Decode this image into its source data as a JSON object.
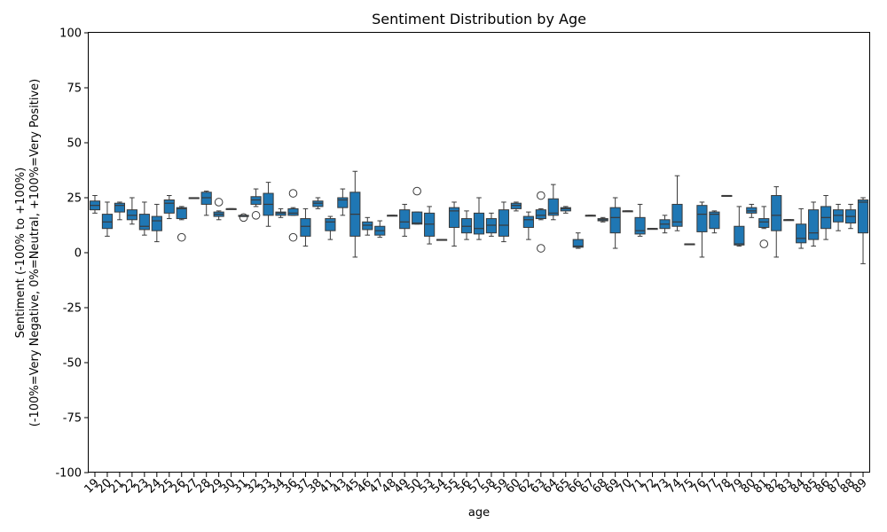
{
  "colors": {
    "box_fill": "#1f77b4",
    "line": "#3a3a3a",
    "axis": "#000000",
    "background": "#ffffff"
  },
  "chart_data": {
    "type": "box",
    "title": "Sentiment Distribution by Age",
    "xlabel": "age",
    "ylabel_line1": "Sentiment (-100% to +100%)",
    "ylabel_line2": "(-100%=Very Negative, 0%=Neutral, +100%=Very Positive)",
    "ylim": [
      -100,
      100
    ],
    "yticks": [
      -100,
      -75,
      -50,
      -25,
      0,
      25,
      50,
      75,
      100
    ],
    "grid": false,
    "categories": [
      "19",
      "20",
      "21",
      "22",
      "23",
      "24",
      "25",
      "26",
      "27",
      "28",
      "29",
      "30",
      "31",
      "32",
      "33",
      "34",
      "36",
      "37",
      "38",
      "41",
      "43",
      "45",
      "46",
      "47",
      "48",
      "49",
      "50",
      "53",
      "54",
      "55",
      "56",
      "57",
      "58",
      "59",
      "60",
      "62",
      "63",
      "64",
      "65",
      "66",
      "67",
      "68",
      "69",
      "70",
      "71",
      "72",
      "73",
      "74",
      "75",
      "76",
      "77",
      "78",
      "79",
      "80",
      "81",
      "82",
      "83",
      "84",
      "85",
      "86",
      "87",
      "88",
      "89"
    ],
    "boxes": [
      {
        "wlo": 18,
        "q1": 19.5,
        "med": 21.5,
        "q3": 23.5,
        "whi": 26,
        "out": []
      },
      {
        "wlo": 7.5,
        "q1": 11,
        "med": 14,
        "q3": 17.5,
        "whi": 23,
        "out": []
      },
      {
        "wlo": 15,
        "q1": 18.5,
        "med": 21.5,
        "q3": 22.5,
        "whi": 23,
        "out": []
      },
      {
        "wlo": 13,
        "q1": 15,
        "med": 17,
        "q3": 19.5,
        "whi": 25,
        "out": []
      },
      {
        "wlo": 8,
        "q1": 10.5,
        "med": 12,
        "q3": 17.5,
        "whi": 23,
        "out": []
      },
      {
        "wlo": 5,
        "q1": 10,
        "med": 14.5,
        "q3": 16.5,
        "whi": 22,
        "out": []
      },
      {
        "wlo": 15.5,
        "q1": 18,
        "med": 22.5,
        "q3": 24,
        "whi": 26,
        "out": []
      },
      {
        "wlo": 15,
        "q1": 15.5,
        "med": 20,
        "q3": 20.5,
        "whi": 21,
        "out": [
          7
        ]
      },
      {
        "wlo": 25,
        "q1": 25,
        "med": 25,
        "q3": 25,
        "whi": 25,
        "out": []
      },
      {
        "wlo": 17,
        "q1": 22,
        "med": 25,
        "q3": 27.5,
        "whi": 28,
        "out": []
      },
      {
        "wlo": 15,
        "q1": 16.5,
        "med": 17.5,
        "q3": 18.5,
        "whi": 19,
        "out": [
          23
        ]
      },
      {
        "wlo": 20,
        "q1": 20,
        "med": 20,
        "q3": 20,
        "whi": 20,
        "out": []
      },
      {
        "wlo": 16.5,
        "q1": 16.5,
        "med": 16.5,
        "q3": 17,
        "whi": 17,
        "out": [
          16
        ]
      },
      {
        "wlo": 21,
        "q1": 22,
        "med": 24,
        "q3": 25.5,
        "whi": 29,
        "out": [
          17
        ]
      },
      {
        "wlo": 12,
        "q1": 17,
        "med": 22,
        "q3": 27,
        "whi": 32,
        "out": []
      },
      {
        "wlo": 16,
        "q1": 17,
        "med": 18,
        "q3": 18.5,
        "whi": 20,
        "out": []
      },
      {
        "wlo": 17,
        "q1": 17,
        "med": 18,
        "q3": 20,
        "whi": 20.5,
        "out": [
          27,
          7
        ]
      },
      {
        "wlo": 3,
        "q1": 7.5,
        "med": 12,
        "q3": 15.5,
        "whi": 20,
        "out": []
      },
      {
        "wlo": 20,
        "q1": 21,
        "med": 22.5,
        "q3": 23.5,
        "whi": 25,
        "out": []
      },
      {
        "wlo": 6,
        "q1": 10,
        "med": 14,
        "q3": 15.5,
        "whi": 16.5,
        "out": []
      },
      {
        "wlo": 17,
        "q1": 20.5,
        "med": 24,
        "q3": 25,
        "whi": 29,
        "out": []
      },
      {
        "wlo": -2,
        "q1": 7.5,
        "med": 17.5,
        "q3": 27.5,
        "whi": 37,
        "out": []
      },
      {
        "wlo": 8,
        "q1": 10.5,
        "med": 12.5,
        "q3": 14,
        "whi": 16,
        "out": []
      },
      {
        "wlo": 7,
        "q1": 8,
        "med": 10,
        "q3": 12,
        "whi": 14.5,
        "out": []
      },
      {
        "wlo": 17,
        "q1": 17,
        "med": 17,
        "q3": 17,
        "whi": 17,
        "out": []
      },
      {
        "wlo": 7.5,
        "q1": 11,
        "med": 14,
        "q3": 19.5,
        "whi": 22,
        "out": []
      },
      {
        "wlo": 13,
        "q1": 13,
        "med": 13.5,
        "q3": 18.5,
        "whi": 18.5,
        "out": [
          28
        ]
      },
      {
        "wlo": 4,
        "q1": 7.5,
        "med": 13,
        "q3": 18,
        "whi": 21,
        "out": []
      },
      {
        "wlo": 6,
        "q1": 6,
        "med": 6,
        "q3": 6,
        "whi": 6,
        "out": []
      },
      {
        "wlo": 3,
        "q1": 11.5,
        "med": 19,
        "q3": 20.5,
        "whi": 23,
        "out": []
      },
      {
        "wlo": 6,
        "q1": 9,
        "med": 12,
        "q3": 15.5,
        "whi": 19,
        "out": []
      },
      {
        "wlo": 6,
        "q1": 8.5,
        "med": 11,
        "q3": 18,
        "whi": 25,
        "out": []
      },
      {
        "wlo": 7.5,
        "q1": 9,
        "med": 12.5,
        "q3": 15.5,
        "whi": 18,
        "out": []
      },
      {
        "wlo": 5,
        "q1": 7.5,
        "med": 12.5,
        "q3": 19.5,
        "whi": 23,
        "out": []
      },
      {
        "wlo": 19,
        "q1": 20,
        "med": 21.5,
        "q3": 22.5,
        "whi": 23,
        "out": []
      },
      {
        "wlo": 6,
        "q1": 11.5,
        "med": 15,
        "q3": 16.5,
        "whi": 18.5,
        "out": []
      },
      {
        "wlo": 15,
        "q1": 15.5,
        "med": 17,
        "q3": 19.5,
        "whi": 20,
        "out": [
          26,
          2
        ]
      },
      {
        "wlo": 15,
        "q1": 17,
        "med": 18,
        "q3": 24.5,
        "whi": 31,
        "out": []
      },
      {
        "wlo": 18,
        "q1": 19,
        "med": 20,
        "q3": 20.5,
        "whi": 21,
        "out": []
      },
      {
        "wlo": 2,
        "q1": 2.5,
        "med": 3,
        "q3": 6,
        "whi": 9,
        "out": []
      },
      {
        "wlo": 17,
        "q1": 17,
        "med": 17,
        "q3": 17,
        "whi": 17,
        "out": []
      },
      {
        "wlo": 14,
        "q1": 14.5,
        "med": 15,
        "q3": 15.5,
        "whi": 16,
        "out": []
      },
      {
        "wlo": 2,
        "q1": 9,
        "med": 16,
        "q3": 20.5,
        "whi": 25,
        "out": []
      },
      {
        "wlo": 19,
        "q1": 19,
        "med": 19,
        "q3": 19,
        "whi": 19,
        "out": []
      },
      {
        "wlo": 7.5,
        "q1": 8.5,
        "med": 10,
        "q3": 16,
        "whi": 22,
        "out": []
      },
      {
        "wlo": 11,
        "q1": 11,
        "med": 11,
        "q3": 11,
        "whi": 11,
        "out": []
      },
      {
        "wlo": 9,
        "q1": 11,
        "med": 13,
        "q3": 15,
        "whi": 17,
        "out": []
      },
      {
        "wlo": 10,
        "q1": 12,
        "med": 14,
        "q3": 22,
        "whi": 35,
        "out": []
      },
      {
        "wlo": 4,
        "q1": 4,
        "med": 4,
        "q3": 4,
        "whi": 4,
        "out": []
      },
      {
        "wlo": -2,
        "q1": 9.5,
        "med": 17.5,
        "q3": 21.5,
        "whi": 23,
        "out": []
      },
      {
        "wlo": 9,
        "q1": 11,
        "med": 17.5,
        "q3": 18.5,
        "whi": 19,
        "out": []
      },
      {
        "wlo": 26,
        "q1": 26,
        "med": 26,
        "q3": 26,
        "whi": 26,
        "out": []
      },
      {
        "wlo": 3,
        "q1": 3.5,
        "med": 4,
        "q3": 12,
        "whi": 21,
        "out": []
      },
      {
        "wlo": 16,
        "q1": 18,
        "med": 19,
        "q3": 20.5,
        "whi": 22,
        "out": []
      },
      {
        "wlo": 11,
        "q1": 11.5,
        "med": 14,
        "q3": 15.5,
        "whi": 21,
        "out": [
          4
        ]
      },
      {
        "wlo": -2,
        "q1": 10,
        "med": 17,
        "q3": 26,
        "whi": 30,
        "out": []
      },
      {
        "wlo": 15,
        "q1": 15,
        "med": 15,
        "q3": 15,
        "whi": 15,
        "out": []
      },
      {
        "wlo": 2,
        "q1": 4.5,
        "med": 6.5,
        "q3": 13,
        "whi": 20,
        "out": []
      },
      {
        "wlo": 3,
        "q1": 6,
        "med": 9,
        "q3": 19.5,
        "whi": 23,
        "out": []
      },
      {
        "wlo": 6,
        "q1": 11,
        "med": 16,
        "q3": 21,
        "whi": 26,
        "out": []
      },
      {
        "wlo": 10,
        "q1": 14,
        "med": 17,
        "q3": 19.5,
        "whi": 22,
        "out": []
      },
      {
        "wlo": 11,
        "q1": 13.5,
        "med": 16.5,
        "q3": 19.5,
        "whi": 22,
        "out": []
      },
      {
        "wlo": -5,
        "q1": 9,
        "med": 23,
        "q3": 24,
        "whi": 25,
        "out": []
      }
    ]
  }
}
